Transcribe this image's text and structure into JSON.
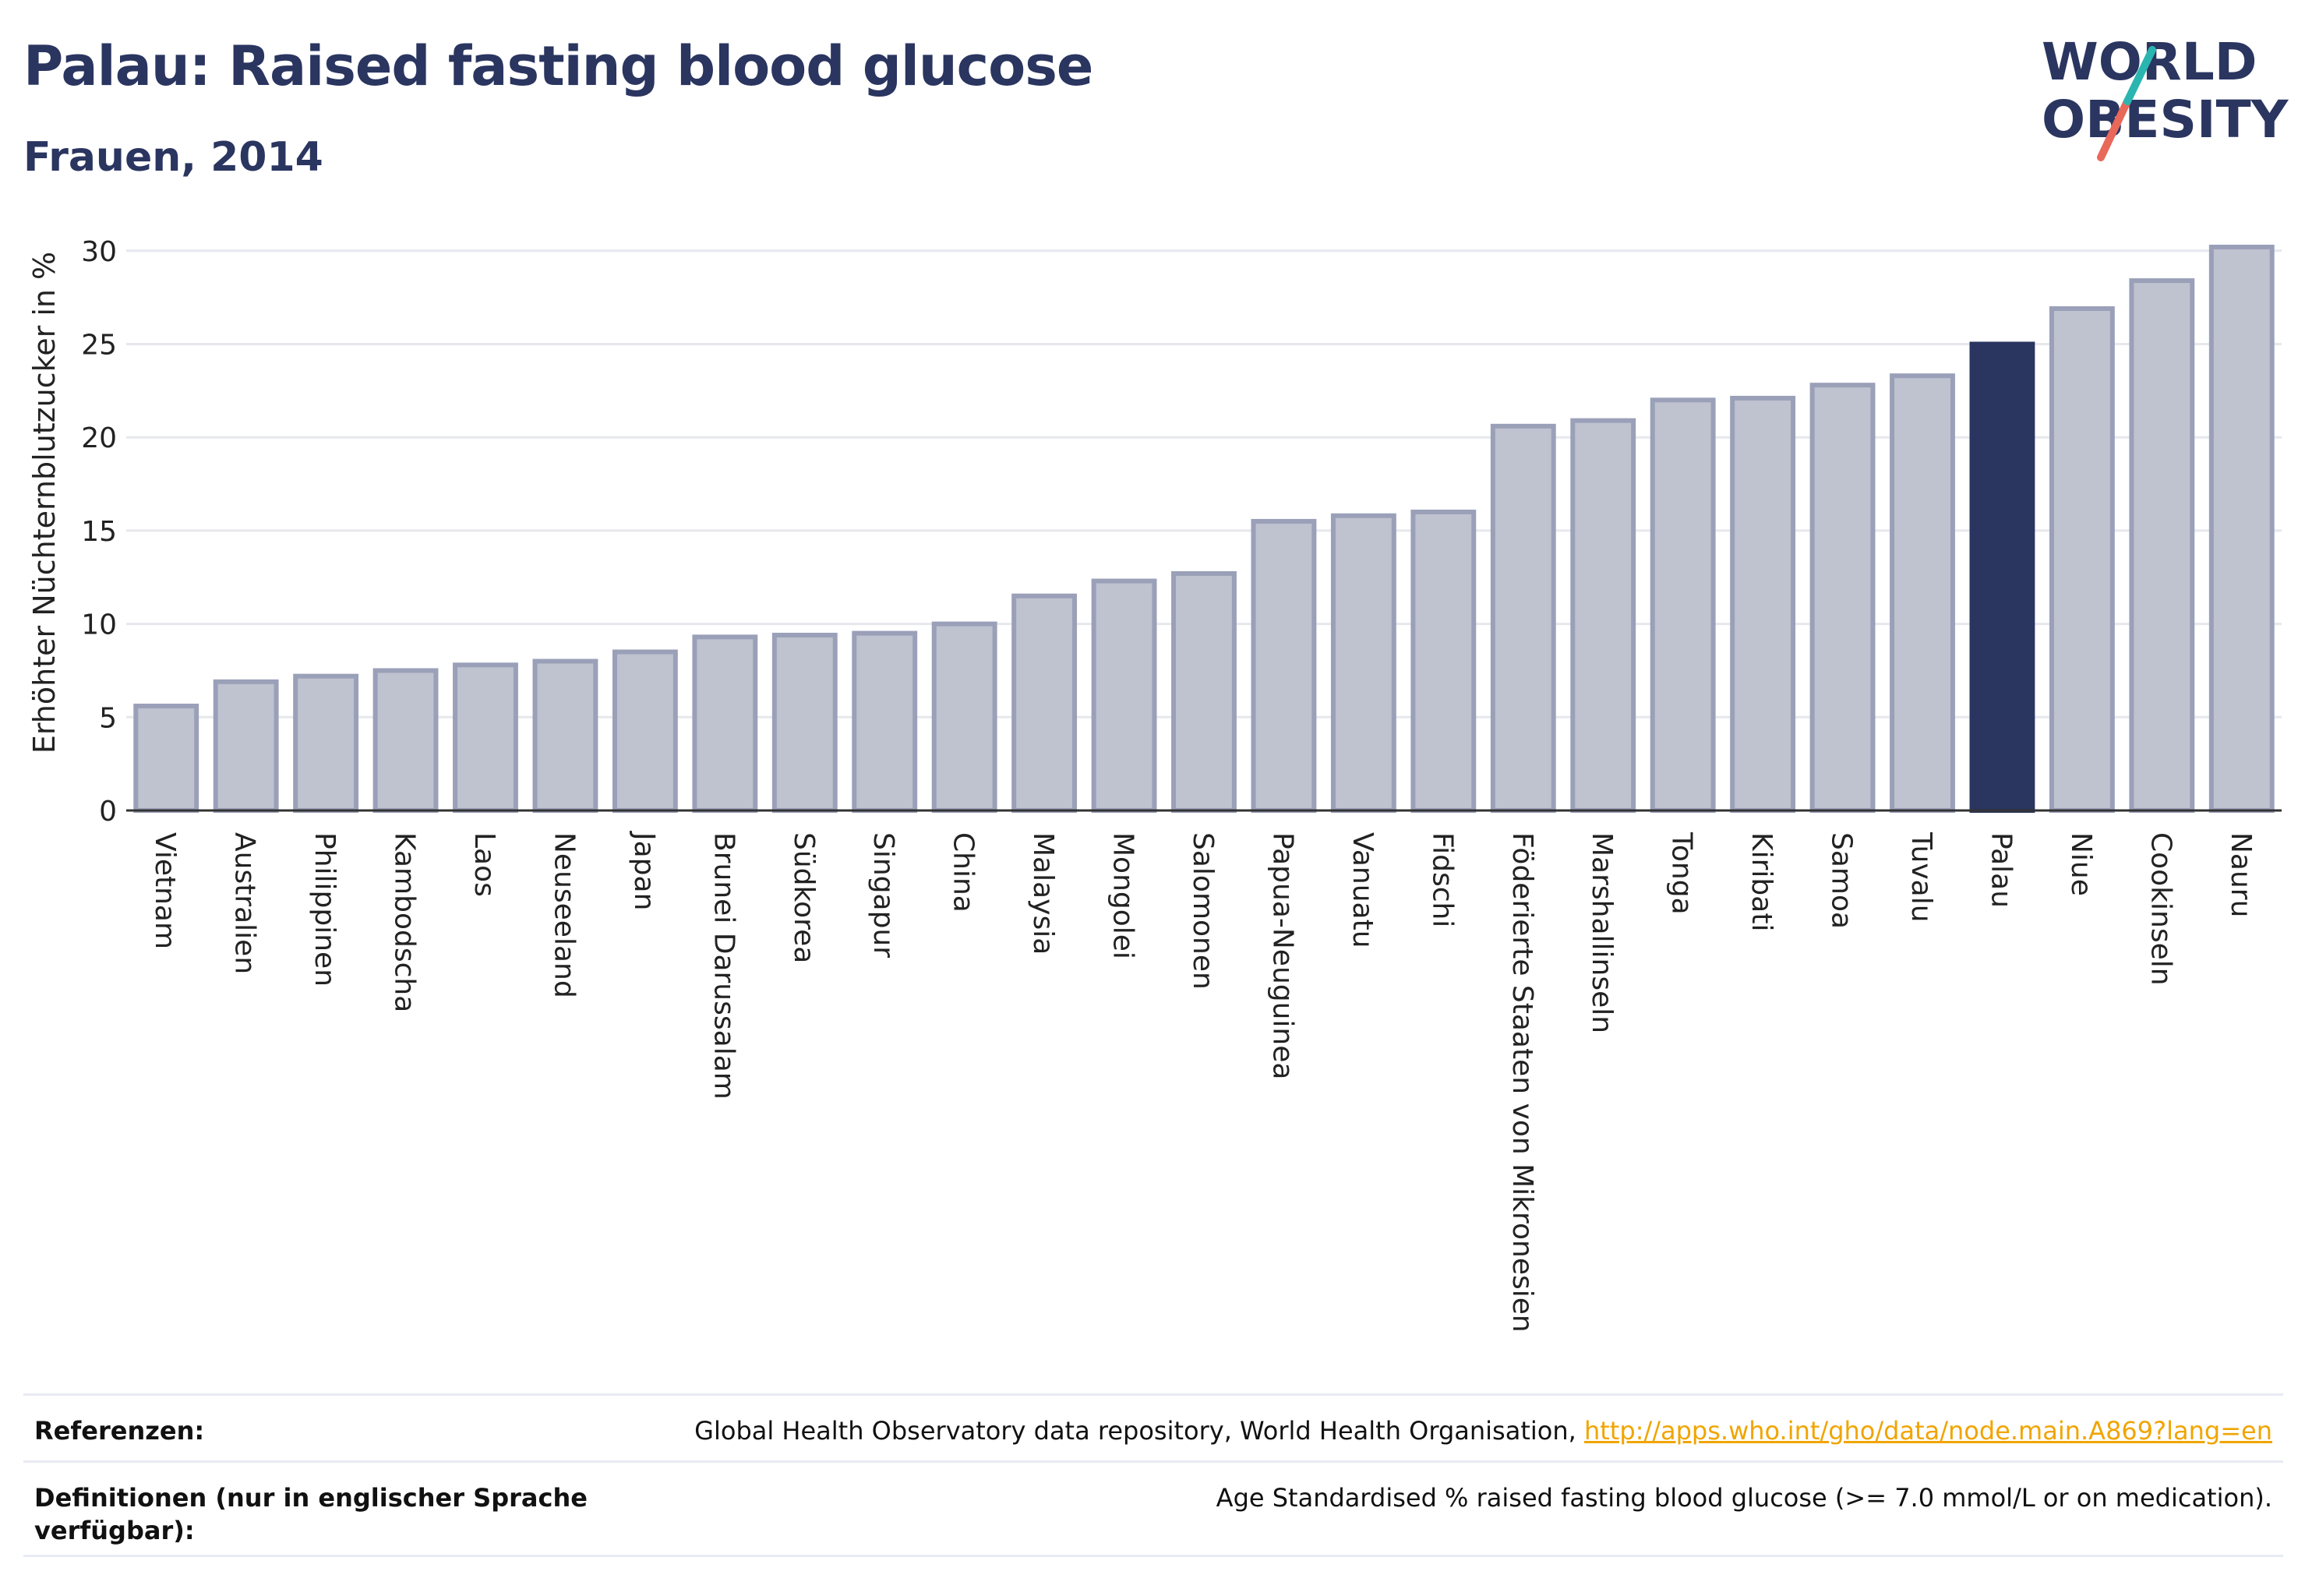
{
  "header": {
    "title": "Palau: Raised fasting blood glucose",
    "subtitle": "Frauen, 2014"
  },
  "logo": {
    "line1": "WORLD",
    "line2": "OBESITY"
  },
  "chart_data": {
    "type": "bar",
    "ylabel": "Erhöhter Nüchternblutzucker in %",
    "xlabel": "",
    "ylim": [
      0,
      30
    ],
    "yticks": [
      0,
      5,
      10,
      15,
      20,
      25,
      30
    ],
    "grid": true,
    "highlight_category": "Palau",
    "colors": {
      "bar": "#bfc2cf",
      "bar_border": "#9aa0b8",
      "highlight": "#2a3560",
      "grid": "#e6e8ee"
    },
    "categories": [
      "Vietnam",
      "Australien",
      "Philippinen",
      "Kambodscha",
      "Laos",
      "Neuseeland",
      "Japan",
      "Brunei Darussalam",
      "Südkorea",
      "Singapur",
      "China",
      "Malaysia",
      "Mongolei",
      "Salomonen",
      "Papua-Neuguinea",
      "Vanuatu",
      "Fidschi",
      "Föderierte Staaten von Mikronesien",
      "Marshallinseln",
      "Tonga",
      "Kiribati",
      "Samoa",
      "Tuvalu",
      "Palau",
      "Niue",
      "Cookinseln",
      "Nauru"
    ],
    "values": [
      5.6,
      6.9,
      7.2,
      7.5,
      7.8,
      8.0,
      8.5,
      9.3,
      9.4,
      9.5,
      10.0,
      11.5,
      12.3,
      12.7,
      15.5,
      15.8,
      16.0,
      20.6,
      20.9,
      22.0,
      22.1,
      22.8,
      23.3,
      25.0,
      26.9,
      28.4,
      30.2
    ]
  },
  "references": {
    "label": "Referenzen:",
    "text": "Global Health Observatory data repository, World Health Organisation, ",
    "link": "http://apps.who.int/gho/data/node.main.A869?lang=en"
  },
  "definitions": {
    "label": "Definitionen (nur in englischer Sprache verfügbar):",
    "text": "Age Standardised % raised fasting blood glucose (>= 7.0 mmol/L or on medication)."
  }
}
